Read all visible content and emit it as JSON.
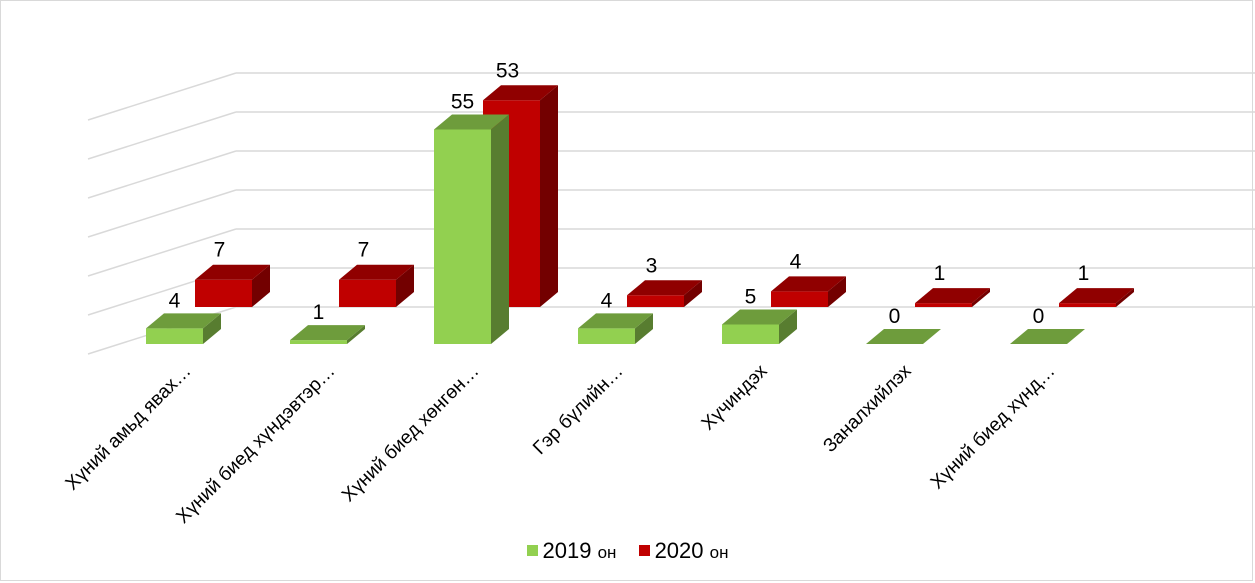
{
  "chart_data": {
    "type": "bar",
    "categories": [
      "Хүний амьд явах…",
      "Хүний биед хүндэвтэр…",
      "Хүний биед хөнгөн…",
      "Гэр бүлийн…",
      "Хүчиндэх",
      "Заналхийлэх",
      "Хүний биед хүнд…"
    ],
    "series": [
      {
        "name": "2019",
        "unit": "он",
        "values": [
          4,
          1,
          55,
          4,
          5,
          0,
          0
        ],
        "color": "#92d050"
      },
      {
        "name": "2020",
        "unit": "он",
        "values": [
          7,
          7,
          53,
          3,
          4,
          1,
          1
        ],
        "color": "#c00000"
      }
    ],
    "ylim": [
      0,
      60
    ],
    "grid": true,
    "legend": "bottom"
  }
}
